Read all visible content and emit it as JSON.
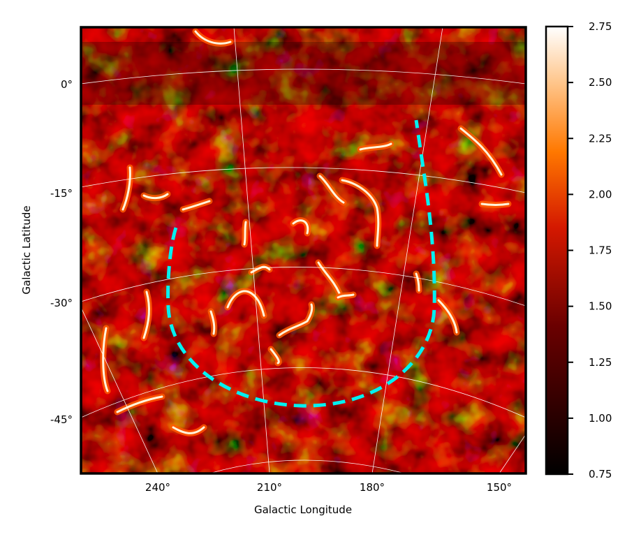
{
  "chart_data": {
    "type": "heatmap",
    "projection": "curved celestial grid (Galactic coordinates)",
    "xlabel": "Galactic Longitude",
    "ylabel": "Galactic Latitude",
    "x_ticks": [
      "240°",
      "210°",
      "180°",
      "150°"
    ],
    "y_ticks": [
      "0°",
      "-15°",
      "-30°",
      "-45°"
    ],
    "colorbar": {
      "colormap": "gist_heat",
      "min": 0.75,
      "max": 2.75,
      "ticks": [
        "0.75",
        "1.00",
        "1.25",
        "1.50",
        "1.75",
        "2.00",
        "2.25",
        "2.50",
        "2.75"
      ]
    },
    "grid": true,
    "overlay": {
      "style": "dashed",
      "color": "#00f0f0",
      "shape": "U-shaped outline"
    }
  }
}
